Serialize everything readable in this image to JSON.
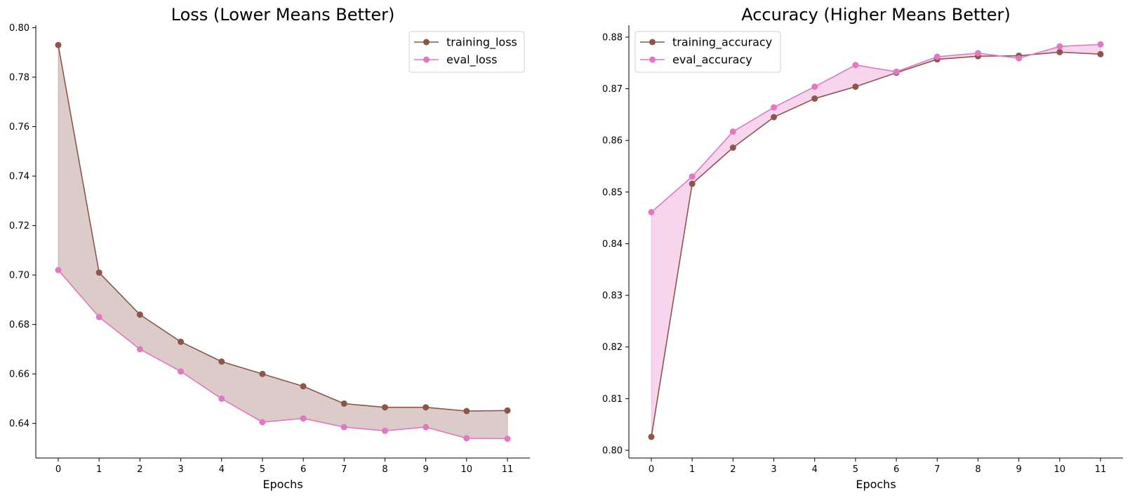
{
  "colors": {
    "training": "#8c564b",
    "eval": "#e377c2",
    "training_fill": "#8c564b",
    "eval_fill": "#e377c2"
  },
  "chart_data": [
    {
      "type": "line",
      "title": "Loss (Lower Means Better)",
      "xlabel": "Epochs",
      "ylabel": "",
      "x": [
        0,
        1,
        2,
        3,
        4,
        5,
        6,
        7,
        8,
        9,
        10,
        11
      ],
      "xlim": [
        -0.55,
        11.55
      ],
      "ylim": [
        0.626,
        0.801
      ],
      "yticks": [
        0.64,
        0.66,
        0.68,
        0.7,
        0.72,
        0.74,
        0.76,
        0.78,
        0.8
      ],
      "grid": false,
      "legend_position": "top-right",
      "fill_between": "training",
      "series": [
        {
          "name": "training_loss",
          "color": "#8c564b",
          "values": [
            0.793,
            0.701,
            0.684,
            0.673,
            0.665,
            0.66,
            0.655,
            0.648,
            0.6465,
            0.6465,
            0.645,
            0.6452
          ]
        },
        {
          "name": "eval_loss",
          "color": "#e377c2",
          "values": [
            0.702,
            0.683,
            0.67,
            0.661,
            0.65,
            0.6405,
            0.642,
            0.6385,
            0.637,
            0.6385,
            0.634,
            0.6338
          ]
        }
      ]
    },
    {
      "type": "line",
      "title": "Accuracy (Higher Means Better)",
      "xlabel": "Epochs",
      "ylabel": "",
      "x": [
        0,
        1,
        2,
        3,
        4,
        5,
        6,
        7,
        8,
        9,
        10,
        11
      ],
      "xlim": [
        -0.55,
        11.55
      ],
      "ylim": [
        0.7985,
        0.8823
      ],
      "yticks": [
        0.8,
        0.81,
        0.82,
        0.83,
        0.84,
        0.85,
        0.86,
        0.87,
        0.88
      ],
      "grid": false,
      "legend_position": "top-left",
      "fill_between": "eval",
      "series": [
        {
          "name": "training_accuracy",
          "color": "#8c564b",
          "values": [
            0.8026,
            0.8516,
            0.8586,
            0.8645,
            0.8681,
            0.8704,
            0.8731,
            0.8757,
            0.8763,
            0.8764,
            0.8771,
            0.8767
          ]
        },
        {
          "name": "eval_accuracy",
          "color": "#e377c2",
          "values": [
            0.8461,
            0.853,
            0.8617,
            0.8664,
            0.8704,
            0.8746,
            0.8733,
            0.8762,
            0.8769,
            0.8759,
            0.8782,
            0.8786
          ]
        }
      ]
    }
  ]
}
